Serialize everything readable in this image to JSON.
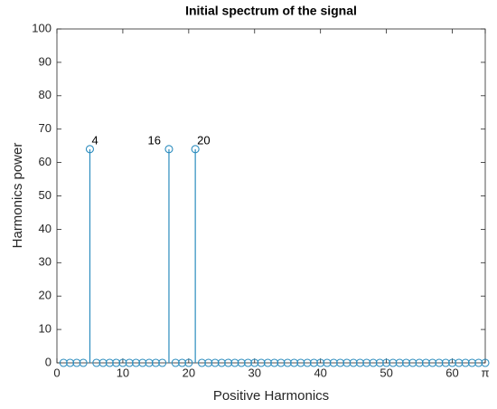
{
  "chart_data": {
    "type": "stem",
    "title": "Initial spectrum of the signal",
    "x_label": "Positive Harmonics",
    "y_label": "Harmonics power",
    "color": "#2b8cbe",
    "x": [
      1,
      2,
      3,
      4,
      5,
      6,
      7,
      8,
      9,
      10,
      11,
      12,
      13,
      14,
      15,
      16,
      17,
      18,
      19,
      20,
      21,
      22,
      23,
      24,
      25,
      26,
      27,
      28,
      29,
      30,
      31,
      32,
      33,
      34,
      35,
      36,
      37,
      38,
      39,
      40,
      41,
      42,
      43,
      44,
      45,
      46,
      47,
      48,
      49,
      50,
      51,
      52,
      53,
      54,
      55,
      56,
      57,
      58,
      59,
      60,
      61,
      62,
      63,
      64,
      65
    ],
    "values": [
      0,
      0,
      0,
      0,
      64,
      0,
      0,
      0,
      0,
      0,
      0,
      0,
      0,
      0,
      0,
      0,
      64,
      0,
      0,
      0,
      64,
      0,
      0,
      0,
      0,
      0,
      0,
      0,
      0,
      0,
      0,
      0,
      0,
      0,
      0,
      0,
      0,
      0,
      0,
      0,
      0,
      0,
      0,
      0,
      0,
      0,
      0,
      0,
      0,
      0,
      0,
      0,
      0,
      0,
      0,
      0,
      0,
      0,
      0,
      0,
      0,
      0,
      0,
      0,
      0
    ],
    "annotations": [
      {
        "text": "4",
        "x": 5,
        "y": 64
      },
      {
        "text": "16",
        "x": 17,
        "y": 64
      },
      {
        "text": "20",
        "x": 21,
        "y": 64
      }
    ],
    "xlim": [
      0,
      65
    ],
    "xticks": [
      0,
      10,
      20,
      30,
      40,
      50,
      60,
      {
        "value": 65,
        "label": "π"
      }
    ],
    "ylim": [
      0,
      100
    ],
    "yticks": [
      0,
      10,
      20,
      30,
      40,
      50,
      60,
      70,
      80,
      90,
      100
    ],
    "grid": false
  }
}
